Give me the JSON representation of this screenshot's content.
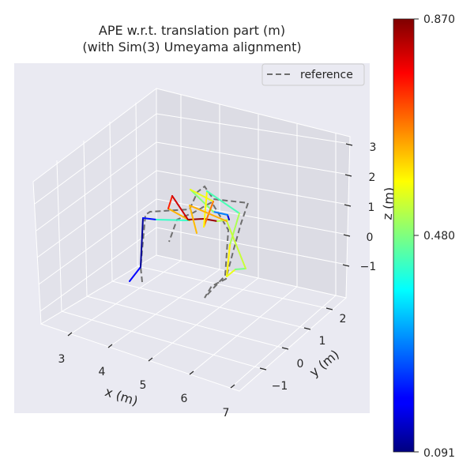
{
  "chart_data": {
    "type": "line-3d",
    "title_line1": "APE w.r.t. translation part (m)",
    "title_line2": "(with Sim(3) Umeyama alignment)",
    "xlabel": "x (m)",
    "ylabel": "y (m)",
    "zlabel": "z (m)",
    "x_ticks": [
      "3",
      "4",
      "5",
      "6",
      "7"
    ],
    "y_ticks": [
      "−1",
      "0",
      "1",
      "2"
    ],
    "z_ticks": [
      "3",
      "2",
      "1",
      "0",
      "−1"
    ],
    "legend": {
      "entry": "reference",
      "placement": "top-right",
      "style": "dashed"
    },
    "colorbar": {
      "colormap": "jet",
      "min_label": "0.091",
      "mid_label": "0.480",
      "max_label": "0.870",
      "min": 0.091,
      "max": 0.87
    },
    "reference_path": [
      [
        180,
        357
      ],
      [
        178,
        338
      ],
      [
        184,
        272
      ],
      [
        190,
        268
      ],
      [
        240,
        265
      ],
      [
        250,
        243
      ],
      [
        259,
        236
      ],
      [
        270,
        252
      ],
      [
        314,
        257
      ],
      [
        305,
        283
      ],
      [
        296,
        315
      ],
      [
        286,
        353
      ],
      [
        268,
        362
      ],
      [
        259,
        377
      ],
      [
        268,
        367
      ],
      [
        285,
        349
      ],
      [
        289,
        291
      ],
      [
        268,
        256
      ],
      [
        245,
        269
      ],
      [
        224,
        278
      ],
      [
        214,
        306
      ]
    ],
    "estimate_path": [
      {
        "p": [
          164,
          356
        ],
        "v": 0.26
      },
      {
        "p": [
          178,
          338
        ],
        "v": 0.12
      },
      {
        "p": [
          181,
          276
        ],
        "v": 0.1
      },
      {
        "p": [
          198,
          278
        ],
        "v": 0.3
      },
      {
        "p": [
          240,
          279
        ],
        "v": 0.55
      },
      {
        "p": [
          213,
          264
        ],
        "v": 0.72
      },
      {
        "p": [
          218,
          248
        ],
        "v": 0.78
      },
      {
        "p": [
          238,
          278
        ],
        "v": 0.84
      },
      {
        "p": [
          258,
          277
        ],
        "v": 0.86
      },
      {
        "p": [
          275,
          280
        ],
        "v": 0.84
      },
      {
        "p": [
          290,
          278
        ],
        "v": 0.2
      },
      {
        "p": [
          288,
          272
        ],
        "v": 0.12
      },
      {
        "p": [
          270,
          268
        ],
        "v": 0.45
      },
      {
        "p": [
          241,
          240
        ],
        "v": 0.52
      },
      {
        "p": [
          270,
          255
        ],
        "v": 0.6
      },
      {
        "p": [
          258,
          287
        ],
        "v": 0.76
      },
      {
        "p": [
          262,
          242
        ],
        "v": 0.4
      },
      {
        "p": [
          303,
          270
        ],
        "v": 0.48
      },
      {
        "p": [
          291,
          310
        ],
        "v": 0.55
      },
      {
        "p": [
          287,
          350
        ],
        "v": 0.62
      },
      {
        "p": [
          298,
          341
        ],
        "v": 0.5
      },
      {
        "p": [
          311,
          340
        ],
        "v": 0.45
      },
      {
        "p": [
          287,
          280
        ],
        "v": 0.62
      },
      {
        "p": [
          240,
          260
        ],
        "v": 0.66
      },
      {
        "p": [
          249,
          295
        ],
        "v": 0.6
      }
    ]
  }
}
